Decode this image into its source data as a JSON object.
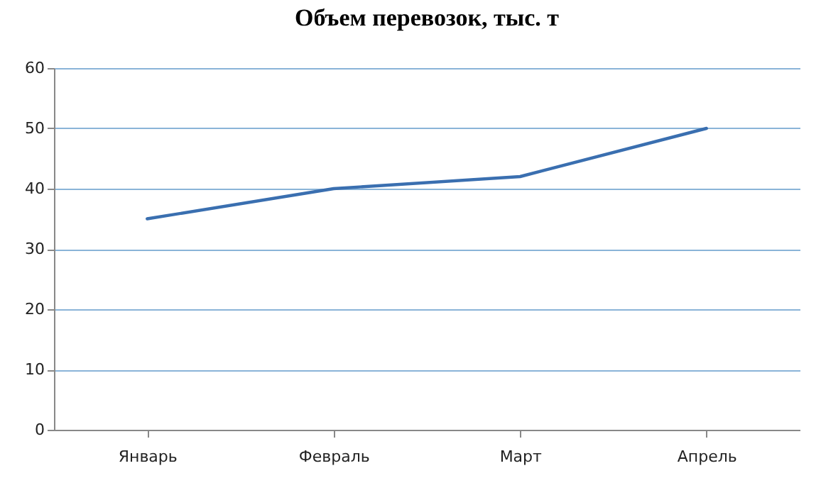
{
  "chart_data": {
    "type": "line",
    "title": "Объем перевозок, тыс. т",
    "categories": [
      "Январь",
      "Февраль",
      "Март",
      "Апрель"
    ],
    "series": [
      {
        "color": "#3a6fb0",
        "values": [
          35,
          40,
          42,
          50
        ]
      }
    ],
    "ylim": [
      0,
      60
    ],
    "yticks": [
      0,
      10,
      20,
      30,
      40,
      50,
      60
    ],
    "grid": "y",
    "marker": "none",
    "line_style": "solid"
  }
}
